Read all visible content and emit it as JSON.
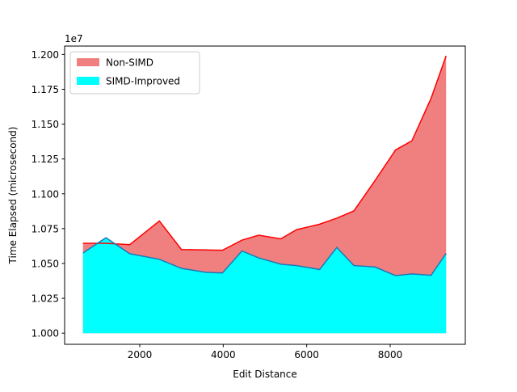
{
  "chart_data": {
    "type": "area",
    "title": "",
    "xlabel": "Edit Distance",
    "ylabel": "Time Elapsed (microsecond)",
    "y_offset_label": "1e7",
    "y_scale_factor": 10000000,
    "xlim": [
      200,
      9800
    ],
    "ylim": [
      9920000,
      12060000
    ],
    "x_ticks": [
      2000,
      4000,
      6000,
      8000
    ],
    "x_tick_labels": [
      "2000",
      "4000",
      "6000",
      "8000"
    ],
    "y_ticks": [
      10000000,
      10250000,
      10500000,
      10750000,
      11000000,
      11250000,
      11500000,
      11750000,
      12000000
    ],
    "y_tick_labels": [
      "1.000",
      "1.025",
      "1.050",
      "1.075",
      "1.100",
      "1.125",
      "1.150",
      "1.175",
      "1.200"
    ],
    "fill_baseline": 10000000,
    "grid": false,
    "legend_position": "top-left",
    "x": [
      640,
      1190,
      1760,
      2470,
      3000,
      3580,
      3980,
      4450,
      4850,
      5380,
      5760,
      6310,
      6720,
      7130,
      7630,
      8130,
      8520,
      8980,
      9340
    ],
    "series": [
      {
        "name": "Non-SIMD",
        "fill_color": "#f08080",
        "line_color": "#ff0000",
        "values": [
          10645000,
          10645000,
          10635000,
          10805000,
          10600000,
          10597000,
          10595000,
          10668000,
          10703000,
          10677000,
          10743000,
          10782000,
          10825000,
          10877000,
          11092000,
          11315000,
          11380000,
          11685000,
          11990000
        ]
      },
      {
        "name": "SIMD-Improved",
        "fill_color": "#00ffff",
        "line_color": "#1f77b4",
        "values": [
          10575000,
          10685000,
          10570000,
          10530000,
          10465000,
          10437000,
          10432000,
          10590000,
          10540000,
          10495000,
          10485000,
          10457000,
          10615000,
          10485000,
          10475000,
          10413000,
          10425000,
          10415000,
          10572000
        ]
      }
    ]
  },
  "colors": {
    "axes": "#000000",
    "background": "#ffffff",
    "legend_border": "#cccccc"
  }
}
